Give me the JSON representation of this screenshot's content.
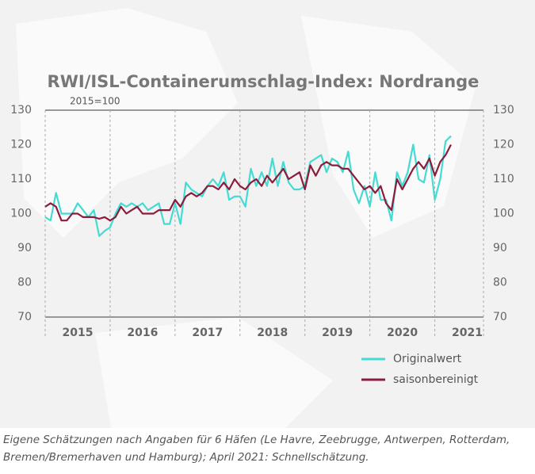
{
  "chart_data": {
    "type": "line",
    "title": "RWI/ISL-Containerumschlag-Index: Nordrange",
    "subtitle": "2015=100",
    "footnote": "Eigene Schätzungen nach Angaben für 6 Häfen (Le Havre, Zeebrugge, Antwerpen, Rotterdam, Bremen/Bremerhaven und Hamburg); April 2021: Schnellschätzung.",
    "year_labels": [
      "2015",
      "2016",
      "2017",
      "2018",
      "2019",
      "2020",
      "2021"
    ],
    "xlim": [
      2015,
      2021.75
    ],
    "xticks": [
      2016,
      2017,
      2018,
      2019,
      2020,
      2021
    ],
    "ylim": [
      70,
      130
    ],
    "yticks": [
      70,
      80,
      90,
      100,
      110,
      120,
      130
    ],
    "x": [
      2015.0,
      2015.083,
      2015.167,
      2015.25,
      2015.333,
      2015.417,
      2015.5,
      2015.583,
      2015.667,
      2015.75,
      2015.833,
      2015.917,
      2016.0,
      2016.083,
      2016.167,
      2016.25,
      2016.333,
      2016.417,
      2016.5,
      2016.583,
      2016.667,
      2016.75,
      2016.833,
      2016.917,
      2017.0,
      2017.083,
      2017.167,
      2017.25,
      2017.333,
      2017.417,
      2017.5,
      2017.583,
      2017.667,
      2017.75,
      2017.833,
      2017.917,
      2018.0,
      2018.083,
      2018.167,
      2018.25,
      2018.333,
      2018.417,
      2018.5,
      2018.583,
      2018.667,
      2018.75,
      2018.833,
      2018.917,
      2019.0,
      2019.083,
      2019.167,
      2019.25,
      2019.333,
      2019.417,
      2019.5,
      2019.583,
      2019.667,
      2019.75,
      2019.833,
      2019.917,
      2020.0,
      2020.083,
      2020.167,
      2020.25,
      2020.333,
      2020.417,
      2020.5,
      2020.583,
      2020.667,
      2020.75,
      2020.833,
      2020.917,
      2021.0,
      2021.083,
      2021.167,
      2021.25
    ],
    "series": [
      {
        "name": "Originalwert",
        "color": "#45dbd3",
        "values": [
          99,
          98,
          106,
          100,
          100,
          100,
          103,
          101,
          99,
          101,
          93.5,
          95,
          96,
          100,
          103,
          102,
          103,
          102,
          103,
          101,
          102,
          103,
          97,
          97,
          103,
          97,
          109,
          107,
          106,
          105,
          108,
          110,
          108,
          112,
          104,
          105,
          105,
          102,
          113,
          108,
          112,
          108,
          116,
          108,
          115,
          109,
          107,
          107,
          108,
          115,
          116,
          117,
          112,
          116,
          115,
          112,
          118,
          107,
          103,
          108,
          102,
          112,
          104,
          104,
          98,
          112,
          108,
          112,
          120,
          110,
          109,
          117,
          104,
          110,
          121,
          122.5
        ]
      },
      {
        "name": "saisonbereinigt",
        "color": "#8c1c3c",
        "values": [
          102,
          103,
          102,
          98,
          98,
          100,
          100,
          99,
          99,
          99,
          98.5,
          99,
          98,
          99,
          102,
          100,
          101,
          102,
          100,
          100,
          100,
          101,
          101,
          101,
          104,
          102,
          105,
          106,
          105,
          106,
          108,
          108,
          107,
          109,
          107,
          110,
          108,
          107,
          109,
          110,
          108,
          111,
          109,
          111,
          113,
          110,
          111,
          112,
          107,
          114,
          111,
          114,
          115,
          114,
          114,
          113,
          113,
          111,
          109,
          107,
          108,
          106,
          108,
          103,
          101,
          110,
          107,
          110,
          113,
          115,
          113,
          116,
          111,
          115,
          117,
          120
        ]
      }
    ]
  }
}
